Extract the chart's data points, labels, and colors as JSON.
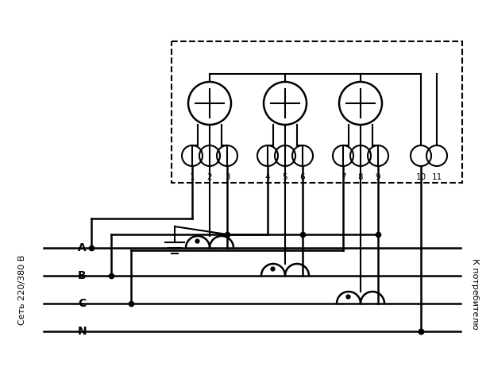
{
  "bg_color": "#ffffff",
  "line_color": "#000000",
  "fig_width": 6.17,
  "fig_height": 4.82,
  "dpi": 100,
  "left_label": "Сеть 220/380 В",
  "right_label": "К потребителю",
  "phase_labels": [
    "A",
    "B",
    "C",
    "N"
  ],
  "lw": 1.8,
  "lw_thin": 1.5
}
